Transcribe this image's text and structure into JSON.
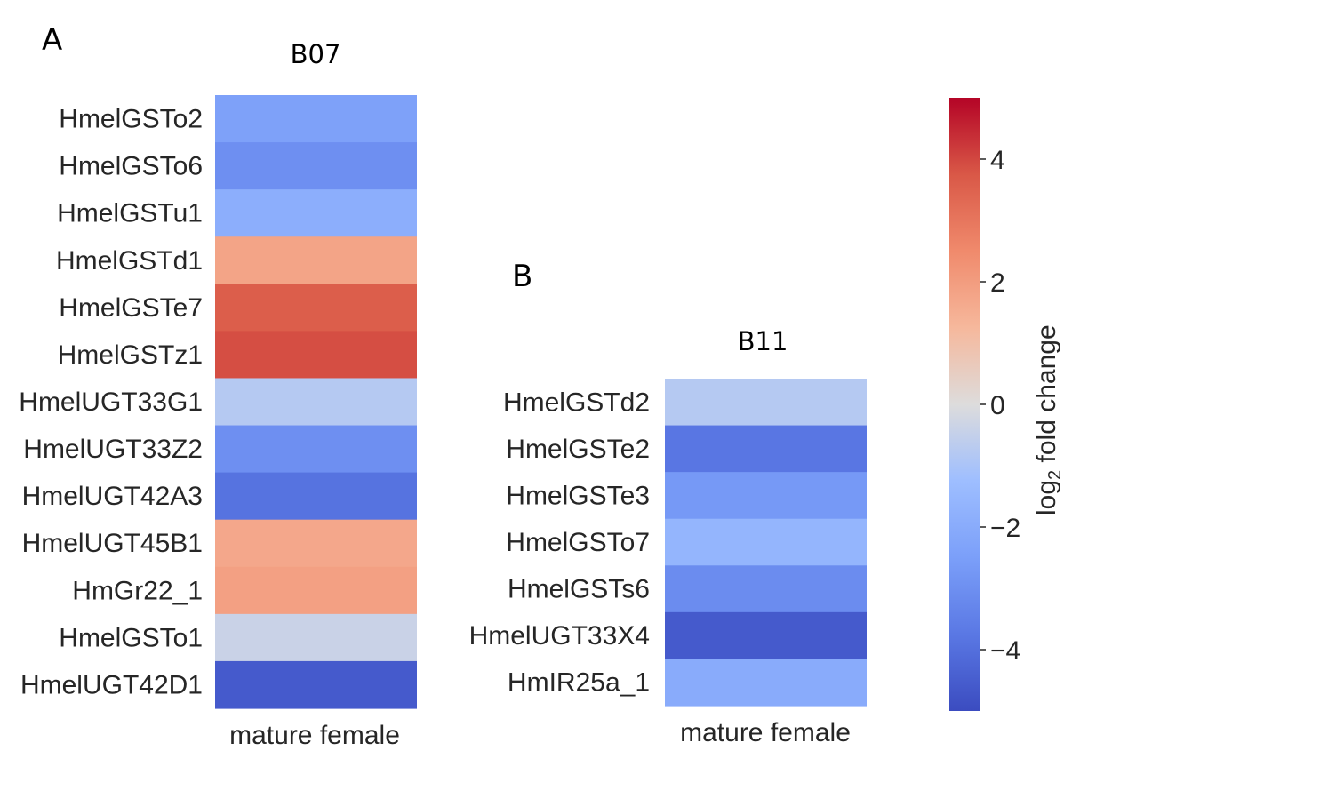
{
  "chart_data": {
    "panels": [
      {
        "type": "heatmap",
        "letter": "A",
        "title": "B07",
        "column": "mature female",
        "rows": [
          "HmelGSTo2",
          "HmelGSTo6",
          "HmelGSTu1",
          "HmelGSTd1",
          "HmelGSTe7",
          "HmelGSTz1",
          "HmelUGT33G1",
          "HmelUGT33Z2",
          "HmelUGT42A3",
          "HmelUGT45B1",
          "HmGr22_1",
          "HmelGSTo1",
          "HmelUGT42D1"
        ],
        "values": [
          -2.4,
          -3.0,
          -1.9,
          1.8,
          3.6,
          3.9,
          -0.8,
          -3.0,
          -3.9,
          1.7,
          1.9,
          -0.4,
          -4.6
        ]
      },
      {
        "type": "heatmap",
        "letter": "B",
        "title": "B11",
        "column": "mature female",
        "rows": [
          "HmelGSTd2",
          "HmelGSTe2",
          "HmelGSTe3",
          "HmelGSTo7",
          "HmelGSTs6",
          "HmelUGT33X4",
          "HmIR25a_1"
        ],
        "values": [
          -0.8,
          -3.8,
          -2.7,
          -1.6,
          -3.1,
          -4.6,
          -2.0
        ]
      }
    ],
    "colorbar": {
      "cmap": "coolwarm",
      "vmin": -5,
      "vmax": 5,
      "ticks": [
        4,
        2,
        0,
        -2,
        -4
      ],
      "tick_labels": [
        "4",
        "2",
        "0",
        "−2",
        "−4"
      ],
      "label_main": "log",
      "label_sub": "2",
      "label_rest": " fold change"
    }
  }
}
